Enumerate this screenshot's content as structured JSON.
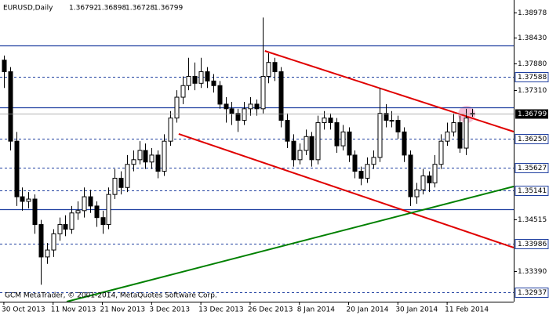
{
  "chart_data": {
    "type": "candlestick",
    "symbol": "EURUSD,Daily",
    "footer": "GCM MetaTrader, © 2001-2014, MetaQuotes Software Corp.",
    "categories": [
      "30 Oct 2013",
      null,
      null,
      null,
      null,
      null,
      null,
      null,
      "11 Nov 2013",
      null,
      null,
      null,
      null,
      null,
      null,
      null,
      "21 Nov 2013",
      null,
      null,
      null,
      null,
      null,
      null,
      null,
      "3 Dec 2013",
      null,
      null,
      null,
      null,
      null,
      null,
      null,
      "13 Dec 2013",
      null,
      null,
      null,
      null,
      null,
      null,
      null,
      "26 Dec 2013",
      null,
      null,
      null,
      null,
      null,
      null,
      null,
      "8 Jan 2014",
      null,
      null,
      null,
      null,
      null,
      null,
      null,
      "20 Jan 2014",
      null,
      null,
      null,
      null,
      null,
      null,
      null,
      "30 Jan 2014",
      null,
      null,
      null,
      null,
      null,
      null,
      null,
      "11 Feb 2014",
      null,
      null,
      null,
      null
    ],
    "open": [
      1.3795,
      1.377,
      1.362,
      1.35,
      1.349,
      1.3495,
      1.344,
      1.337,
      1.3385,
      1.342,
      1.344,
      1.343,
      1.3465,
      1.347,
      1.35,
      1.348,
      1.3455,
      1.344,
      1.3505,
      1.354,
      1.352,
      1.357,
      1.358,
      1.36,
      1.3575,
      1.359,
      1.3555,
      1.362,
      1.367,
      1.3715,
      1.374,
      1.376,
      1.3745,
      1.377,
      1.375,
      1.374,
      1.37,
      1.369,
      1.368,
      1.3665,
      1.369,
      1.37,
      1.369,
      1.376,
      1.379,
      1.377,
      1.3665,
      1.362,
      1.358,
      1.36,
      1.363,
      1.358,
      1.366,
      1.367,
      1.366,
      1.361,
      1.364,
      1.359,
      1.3555,
      1.354,
      1.357,
      1.3585,
      1.368,
      1.3665,
      1.3665,
      1.364,
      1.359,
      1.35,
      1.3515,
      1.3545,
      1.353,
      1.357,
      1.362,
      1.364,
      1.366,
      1.3605,
      1.36792
    ],
    "high": [
      1.3805,
      1.378,
      1.364,
      1.352,
      1.351,
      1.3505,
      1.345,
      1.34,
      1.343,
      1.3455,
      1.346,
      1.348,
      1.349,
      1.352,
      1.3515,
      1.349,
      1.347,
      1.352,
      1.356,
      1.3555,
      1.359,
      1.36,
      1.362,
      1.3615,
      1.3605,
      1.36,
      1.3635,
      1.3685,
      1.373,
      1.376,
      1.38,
      1.379,
      1.38,
      1.378,
      1.3765,
      1.375,
      1.3715,
      1.3705,
      1.369,
      1.3705,
      1.3715,
      1.371,
      1.3887,
      1.381,
      1.38,
      1.378,
      1.368,
      1.3635,
      1.3615,
      1.3645,
      1.364,
      1.3675,
      1.3685,
      1.368,
      1.367,
      1.3655,
      1.365,
      1.36,
      1.3565,
      1.3585,
      1.36,
      1.3735,
      1.37,
      1.3685,
      1.3675,
      1.365,
      1.36,
      1.353,
      1.356,
      1.3555,
      1.359,
      1.3635,
      1.366,
      1.368,
      1.3675,
      1.369,
      1.36898
    ],
    "low": [
      1.3735,
      1.36,
      1.348,
      1.347,
      1.3475,
      1.342,
      1.331,
      1.3355,
      1.337,
      1.3405,
      1.3415,
      1.342,
      1.345,
      1.3455,
      1.3465,
      1.3435,
      1.342,
      1.343,
      1.3495,
      1.3505,
      1.351,
      1.3555,
      1.357,
      1.356,
      1.356,
      1.354,
      1.3545,
      1.361,
      1.366,
      1.37,
      1.373,
      1.373,
      1.3735,
      1.3735,
      1.3725,
      1.369,
      1.366,
      1.3655,
      1.364,
      1.3655,
      1.3675,
      1.3675,
      1.368,
      1.3745,
      1.375,
      1.365,
      1.3605,
      1.3565,
      1.357,
      1.359,
      1.3565,
      1.357,
      1.3645,
      1.3645,
      1.3595,
      1.36,
      1.3575,
      1.354,
      1.3525,
      1.353,
      1.356,
      1.3575,
      1.365,
      1.365,
      1.3625,
      1.3575,
      1.348,
      1.3485,
      1.3505,
      1.351,
      1.352,
      1.356,
      1.361,
      1.363,
      1.3595,
      1.359,
      1.36728
    ],
    "close": [
      1.377,
      1.362,
      1.35,
      1.349,
      1.3495,
      1.344,
      1.337,
      1.3385,
      1.342,
      1.344,
      1.343,
      1.3465,
      1.347,
      1.35,
      1.348,
      1.3455,
      1.344,
      1.3505,
      1.354,
      1.352,
      1.357,
      1.358,
      1.36,
      1.3575,
      1.359,
      1.3555,
      1.362,
      1.367,
      1.3715,
      1.374,
      1.376,
      1.3745,
      1.377,
      1.375,
      1.374,
      1.37,
      1.369,
      1.368,
      1.3665,
      1.369,
      1.37,
      1.369,
      1.376,
      1.379,
      1.377,
      1.3665,
      1.362,
      1.358,
      1.36,
      1.363,
      1.358,
      1.366,
      1.367,
      1.366,
      1.361,
      1.364,
      1.359,
      1.3555,
      1.354,
      1.357,
      1.3585,
      1.368,
      1.3665,
      1.3665,
      1.364,
      1.359,
      1.35,
      1.3515,
      1.3545,
      1.353,
      1.357,
      1.362,
      1.364,
      1.366,
      1.3605,
      1.367,
      1.36799
    ],
    "ylim": [
      1.32734,
      1.39249
    ],
    "yticks": [
      1.38978,
      {
        "value": 1.3843,
        "label": "1.38430"
      },
      {
        "value": 1.3788,
        "label": "1.37880"
      },
      {
        "value": 1.3731,
        "label": "1.37310"
      },
      1.34515,
      {
        "value": 1.3339,
        "label": "1.33390"
      }
    ],
    "levels": [
      1.37588,
      {
        "value": 1.3625,
        "label": "1.36250"
      },
      1.35627,
      1.35141,
      1.33986,
      1.32937
    ],
    "solid_lines": [
      1.38268,
      1.36931,
      1.34731
    ],
    "trendlines": [
      {
        "color": "#e00000",
        "x": [
          42.4,
          82.8
        ],
        "y": [
          1.38149,
          1.36406
        ]
      },
      {
        "color": "#e00000",
        "x": [
          28.4,
          82.8
        ],
        "y": [
          1.36356,
          1.33902
        ]
      },
      {
        "color": "#008000",
        "x": [
          10.2,
          82.8
        ],
        "y": [
          1.32734,
          1.35222
        ]
      }
    ],
    "level_color": "#1f3fa0",
    "bull_color": "#ffffff",
    "bear_color": "#000000"
  }
}
